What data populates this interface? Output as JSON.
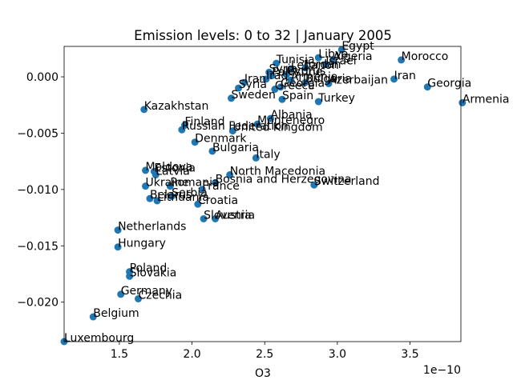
{
  "chart_data": {
    "type": "scatter",
    "title": "Emission levels: 0 to 32 | January 2005",
    "xlabel": "O3",
    "ylabel": "",
    "x_offset_label": "1e−10",
    "x_scale": 1e-10,
    "xlim": [
      1.12,
      3.85
    ],
    "ylim": [
      -0.0235,
      0.0027
    ],
    "xticks": [
      1.5,
      2.0,
      2.5,
      3.0,
      3.5
    ],
    "xtick_labels": [
      "1.5",
      "2.0",
      "2.5",
      "3.0",
      "3.5"
    ],
    "yticks": [
      0.0,
      -0.005,
      -0.01,
      -0.015,
      -0.02
    ],
    "ytick_labels": [
      "0.000",
      "−0.005",
      "−0.010",
      "−0.015",
      "−0.020"
    ],
    "grid": false,
    "legend": "none",
    "point_color": "#1f77b4",
    "points": [
      {
        "label": "Egypt",
        "x": 3.03,
        "y": 0.0024
      },
      {
        "label": "Algeria",
        "x": 2.97,
        "y": 0.0015
      },
      {
        "label": "Libya",
        "x": 2.87,
        "y": 0.0017
      },
      {
        "label": "Tunisia",
        "x": 2.58,
        "y": 0.0012
      },
      {
        "label": "Israel",
        "x": 2.92,
        "y": 0.0011
      },
      {
        "label": "Jordan",
        "x": 2.78,
        "y": 0.0008
      },
      {
        "label": "Lebanon",
        "x": 2.68,
        "y": 0.0007
      },
      {
        "label": "Syria",
        "x": 2.53,
        "y": 0.0004
      },
      {
        "label": "Cyprus",
        "x": 2.65,
        "y": 0.0002
      },
      {
        "label": "Palestine",
        "x": 2.55,
        "y": 0.0001
      },
      {
        "label": "Iraq",
        "x": 2.51,
        "y": -0.0002
      },
      {
        "label": "Armenia",
        "x": 2.68,
        "y": -0.0003
      },
      {
        "label": "Azerbaijan",
        "x": 2.94,
        "y": -0.0006
      },
      {
        "label": "Bulgaria",
        "x": 2.78,
        "y": -0.0005
      },
      {
        "label": "Iran",
        "x": 2.36,
        "y": -0.0005
      },
      {
        "label": "Syria",
        "x": 2.32,
        "y": -0.001
      },
      {
        "label": "Georgia",
        "x": 2.61,
        "y": -0.0009
      },
      {
        "label": "Greece",
        "x": 2.57,
        "y": -0.0011
      },
      {
        "label": "Sweden",
        "x": 2.27,
        "y": -0.0019
      },
      {
        "label": "Spain",
        "x": 2.62,
        "y": -0.002
      },
      {
        "label": "Turkey",
        "x": 2.87,
        "y": -0.0022
      },
      {
        "label": "Morocco",
        "x": 3.44,
        "y": 0.0015
      },
      {
        "label": "Iran",
        "x": 3.39,
        "y": -0.0002
      },
      {
        "label": "Georgia",
        "x": 3.62,
        "y": -0.0009
      },
      {
        "label": "Armenia",
        "x": 3.86,
        "y": -0.0023
      },
      {
        "label": "Kazakhstan",
        "x": 1.67,
        "y": -0.0029
      },
      {
        "label": "Albania",
        "x": 2.54,
        "y": -0.0037
      },
      {
        "label": "Montenegro",
        "x": 2.45,
        "y": -0.0042
      },
      {
        "label": "Finland",
        "x": 1.95,
        "y": -0.0043
      },
      {
        "label": "Russian Federation",
        "x": 1.93,
        "y": -0.0047
      },
      {
        "label": "United Kingdom",
        "x": 2.28,
        "y": -0.0048
      },
      {
        "label": "Denmark",
        "x": 2.02,
        "y": -0.0058
      },
      {
        "label": "Bulgaria",
        "x": 2.14,
        "y": -0.0066
      },
      {
        "label": "Italy",
        "x": 2.44,
        "y": -0.0072
      },
      {
        "label": "Moldova",
        "x": 1.68,
        "y": -0.0083
      },
      {
        "label": "Estonia",
        "x": 1.74,
        "y": -0.0084
      },
      {
        "label": "Latvia",
        "x": 1.75,
        "y": -0.0087
      },
      {
        "label": "North Macedonia",
        "x": 2.26,
        "y": -0.0087
      },
      {
        "label": "Bosnia and Herzegovina",
        "x": 2.16,
        "y": -0.0094
      },
      {
        "label": "Switzerland",
        "x": 2.84,
        "y": -0.0096
      },
      {
        "label": "Ukraine",
        "x": 1.68,
        "y": -0.0097
      },
      {
        "label": "Romania",
        "x": 1.85,
        "y": -0.0097
      },
      {
        "label": "France",
        "x": 2.07,
        "y": -0.01
      },
      {
        "label": "Belarus",
        "x": 1.71,
        "y": -0.0108
      },
      {
        "label": "Serbia",
        "x": 1.86,
        "y": -0.0106
      },
      {
        "label": "Lithuania",
        "x": 1.76,
        "y": -0.011
      },
      {
        "label": "Croatia",
        "x": 2.04,
        "y": -0.0113
      },
      {
        "label": "Slovenia",
        "x": 2.08,
        "y": -0.0126
      },
      {
        "label": "Austria",
        "x": 2.16,
        "y": -0.0126
      },
      {
        "label": "Netherlands",
        "x": 1.49,
        "y": -0.0136
      },
      {
        "label": "Hungary",
        "x": 1.49,
        "y": -0.0151
      },
      {
        "label": "Poland",
        "x": 1.57,
        "y": -0.0173
      },
      {
        "label": "Slovakia",
        "x": 1.57,
        "y": -0.0177
      },
      {
        "label": "Germany",
        "x": 1.51,
        "y": -0.0193
      },
      {
        "label": "Czechia",
        "x": 1.63,
        "y": -0.0197
      },
      {
        "label": "Belgium",
        "x": 1.32,
        "y": -0.0213
      },
      {
        "label": "Luxembourg",
        "x": 1.12,
        "y": -0.0235
      }
    ]
  }
}
